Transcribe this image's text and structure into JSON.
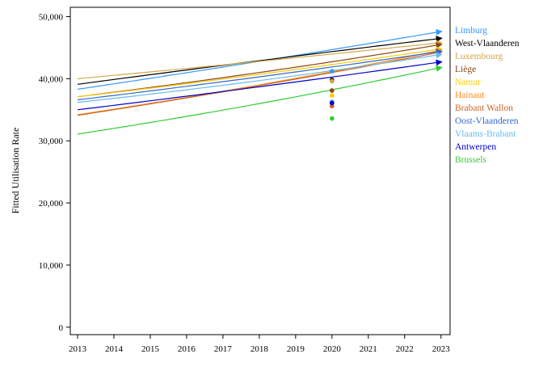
{
  "chart_data": {
    "type": "line",
    "ylabel": "Fitted Utilisation Rate",
    "xlabel": "",
    "x_ticks": [
      "2013",
      "2014",
      "2015",
      "2016",
      "2017",
      "2018",
      "2019",
      "2020",
      "2021",
      "2022",
      "2023"
    ],
    "y_ticks": [
      "0",
      "10,000",
      "20,000",
      "30,000",
      "40,000",
      "50,000"
    ],
    "xlim": [
      2012.8,
      2023.25
    ],
    "ylim": [
      -1200,
      51500
    ],
    "legend_position": "right",
    "grid": false,
    "observed_year": 2020,
    "series": [
      {
        "name": "Limburg",
        "color": "#3399ff",
        "x": [
          2013,
          2018,
          2023
        ],
        "y": [
          38300,
          42800,
          47600
        ],
        "observed": 41200
      },
      {
        "name": "West-Vlaanderen",
        "color": "#000000",
        "x": [
          2013,
          2018,
          2023
        ],
        "y": [
          39100,
          42900,
          46500
        ],
        "observed": 39800
      },
      {
        "name": "Luxembourg",
        "color": "#d4a84a",
        "x": [
          2013,
          2018,
          2023
        ],
        "y": [
          40000,
          42800,
          45800
        ],
        "observed": 39600
      },
      {
        "name": "Liège",
        "color": "#8b4513",
        "x": [
          2013,
          2018,
          2023
        ],
        "y": [
          37100,
          41000,
          45500
        ],
        "observed": 38100
      },
      {
        "name": "Namur",
        "color": "#ffcc00",
        "x": [
          2013,
          2018,
          2023
        ],
        "y": [
          37100,
          40700,
          44800
        ],
        "observed": 37300
      },
      {
        "name": "Hainaut",
        "color": "#ff8c1a",
        "x": [
          2013,
          2018,
          2023
        ],
        "y": [
          34200,
          39000,
          44600
        ],
        "observed": 36000
      },
      {
        "name": "Brabant Wallon",
        "color": "#cc6622",
        "x": [
          2013,
          2018,
          2023
        ],
        "y": [
          34100,
          38900,
          44300
        ],
        "observed": 35600
      },
      {
        "name": "Oost-Vlaanderen",
        "color": "#3366cc",
        "x": [
          2013,
          2018,
          2023
        ],
        "y": [
          36600,
          40300,
          44400
        ],
        "observed": 36200
      },
      {
        "name": "Vlaams-Brabant",
        "color": "#66bbee",
        "x": [
          2013,
          2018,
          2023
        ],
        "y": [
          36200,
          39700,
          43900
        ],
        "observed": 36300
      },
      {
        "name": "Antwerpen",
        "color": "#0000cc",
        "x": [
          2013,
          2018,
          2023
        ],
        "y": [
          35000,
          38700,
          42700
        ],
        "observed": 36100
      },
      {
        "name": "Brussels",
        "color": "#33cc33",
        "x": [
          2013,
          2018,
          2023
        ],
        "y": [
          31100,
          36000,
          41800
        ],
        "observed": 33600
      }
    ]
  }
}
